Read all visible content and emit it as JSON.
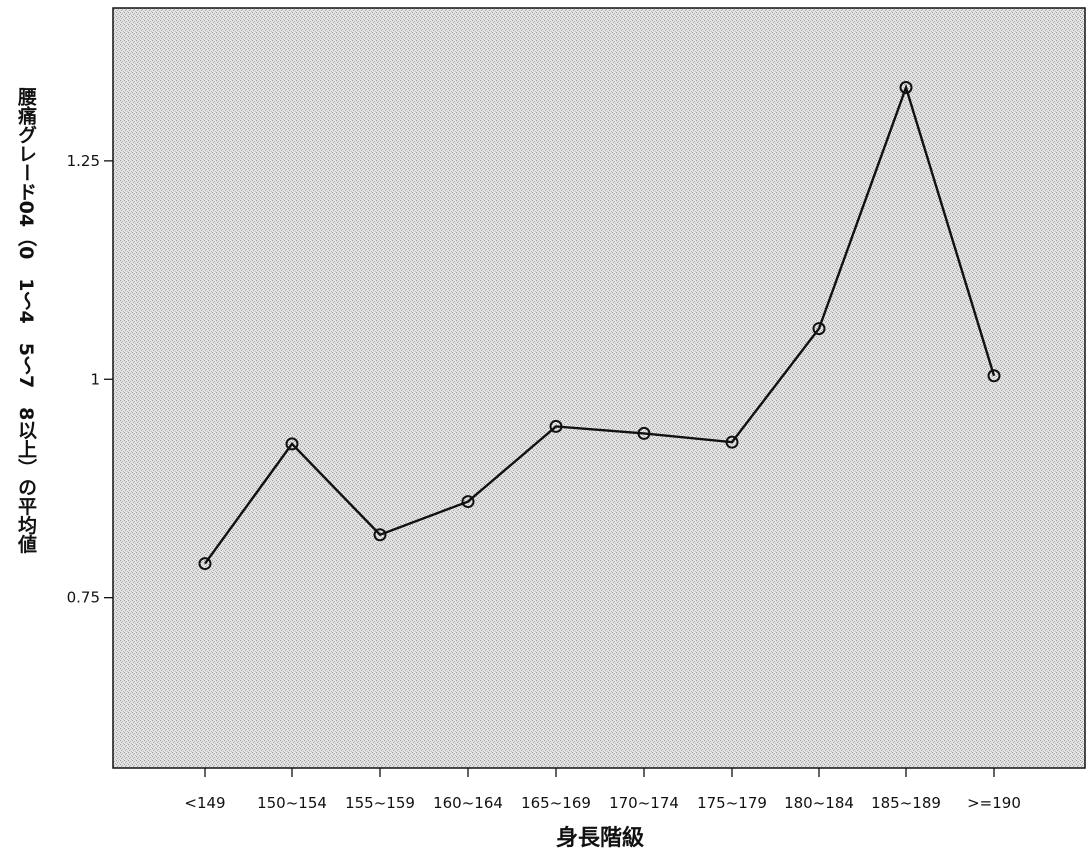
{
  "chart_data": {
    "type": "line",
    "categories": [
      "<149",
      "150~154",
      "155~159",
      "160~164",
      "165~169",
      "170~174",
      "175~179",
      "180~184",
      "185~189",
      ">=190"
    ],
    "series": [
      {
        "values": [
          0.789,
          0.926,
          0.822,
          0.86,
          0.946,
          0.938,
          0.928,
          1.058,
          1.334,
          1.004
        ]
      }
    ],
    "xlabel": "身長階級",
    "ylabel": "腰痛グレード04（0　1～4　5～7　8以上）の平均値",
    "y_ticks": [
      "0.75",
      "1",
      "1.25"
    ],
    "y_tick_values": [
      0.75,
      1,
      1.25
    ],
    "ylim": [
      0.555,
      1.425
    ],
    "grid": false,
    "markers": "open-circle"
  }
}
